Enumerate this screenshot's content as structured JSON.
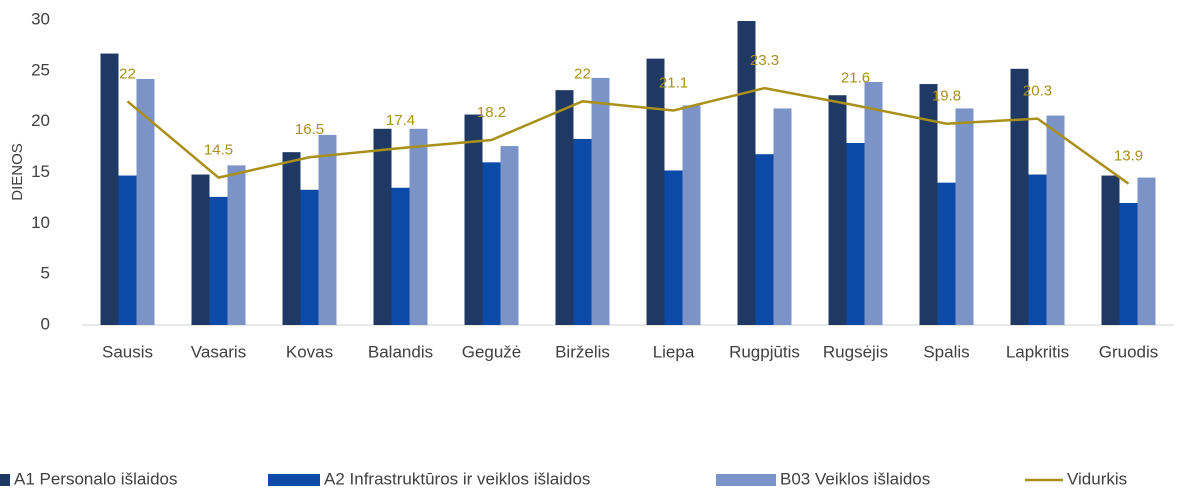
{
  "chart_data": {
    "type": "bar",
    "categories": [
      "Sausis",
      "Vasaris",
      "Kovas",
      "Balandis",
      "Gegužė",
      "Birželis",
      "Liepa",
      "Rugpjūtis",
      "Rugsėjis",
      "Spalis",
      "Lapkritis",
      "Gruodis"
    ],
    "ylabel": "DIENOS",
    "ylim": [
      0,
      30
    ],
    "yticks": [
      0,
      5,
      10,
      15,
      20,
      25,
      30
    ],
    "grid": false,
    "legend": "bottom",
    "series": [
      {
        "name": "A1 Personalo išlaidos",
        "color": "#1f3864",
        "values": [
          26.7,
          14.8,
          17.0,
          19.3,
          20.7,
          23.1,
          26.2,
          29.9,
          22.6,
          23.7,
          25.2,
          14.7
        ]
      },
      {
        "name": "A2 Infrastruktūros ir veiklos išlaidos",
        "color": "#0b4aa6",
        "values": [
          14.7,
          12.6,
          13.3,
          13.5,
          16.0,
          18.3,
          15.2,
          16.8,
          17.9,
          14.0,
          14.8,
          12.0
        ]
      },
      {
        "name": "B03 Veiklos išlaidos",
        "color": "#7c93c8",
        "values": [
          24.2,
          15.7,
          18.7,
          19.3,
          17.6,
          24.3,
          21.6,
          21.3,
          23.9,
          21.3,
          20.6,
          14.5
        ]
      },
      {
        "name": "Vidurkis",
        "type": "line",
        "color": "#a8901a",
        "values": [
          22,
          14.5,
          16.5,
          17.4,
          18.2,
          22,
          21.1,
          23.3,
          21.6,
          19.8,
          20.3,
          13.9
        ]
      }
    ]
  }
}
